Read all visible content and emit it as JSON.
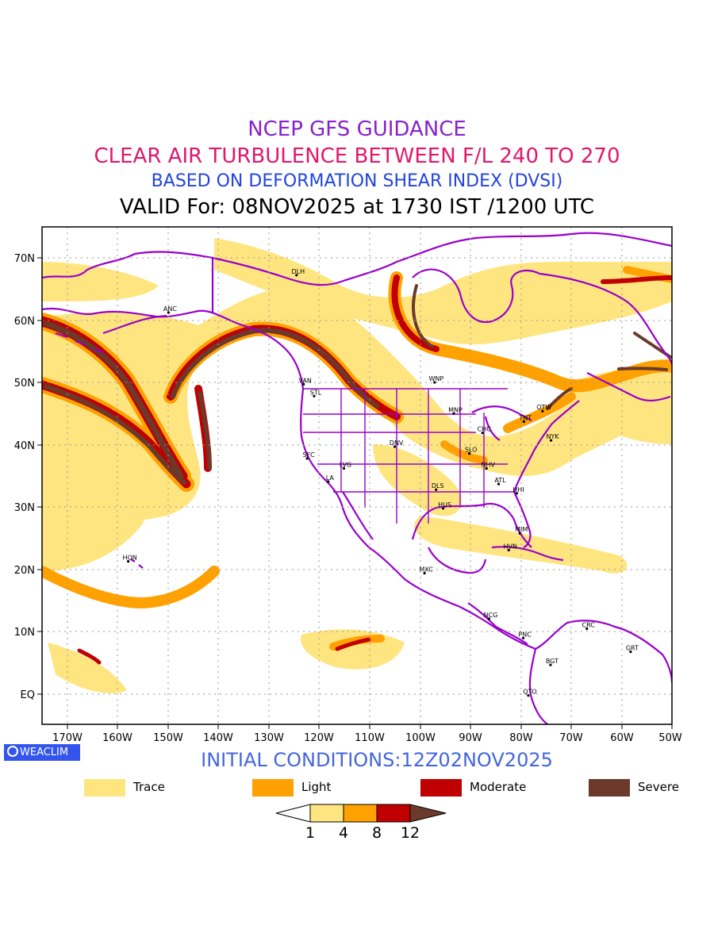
{
  "header": {
    "line1": "NCEP GFS GUIDANCE",
    "line2": "CLEAR AIR TURBULENCE BETWEEN F/L 240 TO 270",
    "line3": "BASED ON DEFORMATION SHEAR INDEX (DVSI)",
    "line4": "VALID For: 08NOV2025 at 1730 IST /1200 UTC"
  },
  "colors": {
    "line1": "#8822cc",
    "line2": "#e0186c",
    "line3": "#2244dd",
    "trace": "#ffe580",
    "light": "#ffa100",
    "moderate": "#c00000",
    "severe": "#6b3a2a",
    "boundary": "#9900cc"
  },
  "axes": {
    "lat_labels": [
      "70N",
      "60N",
      "50N",
      "40N",
      "30N",
      "20N",
      "10N",
      "EQ"
    ],
    "lon_labels": [
      "170W",
      "160W",
      "150W",
      "140W",
      "130W",
      "120W",
      "110W",
      "100W",
      "90W",
      "80W",
      "70W",
      "60W",
      "50W"
    ]
  },
  "stations": [
    {
      "name": "ANC",
      "lon": -149.9,
      "lat": 61.2
    },
    {
      "name": "DLH",
      "lon": -124.5,
      "lat": 67.2
    },
    {
      "name": "VAN",
      "lon": -123.1,
      "lat": 49.7
    },
    {
      "name": "STL",
      "lon": -121.0,
      "lat": 47.8
    },
    {
      "name": "WNP",
      "lon": -97.1,
      "lat": 50.0
    },
    {
      "name": "MNP",
      "lon": -93.3,
      "lat": 45.0
    },
    {
      "name": "OTW",
      "lon": -75.7,
      "lat": 45.4
    },
    {
      "name": "TNT",
      "lon": -79.4,
      "lat": 43.7
    },
    {
      "name": "CHC",
      "lon": -87.6,
      "lat": 41.9
    },
    {
      "name": "NYK",
      "lon": -74.0,
      "lat": 40.7
    },
    {
      "name": "SFC",
      "lon": -122.4,
      "lat": 37.8
    },
    {
      "name": "LVG",
      "lon": -115.1,
      "lat": 36.2
    },
    {
      "name": "DNV",
      "lon": -105.0,
      "lat": 39.7
    },
    {
      "name": "SLO",
      "lon": -90.2,
      "lat": 38.6
    },
    {
      "name": "NHV",
      "lon": -86.8,
      "lat": 36.2
    },
    {
      "name": "LA",
      "lon": -118.2,
      "lat": 34.1
    },
    {
      "name": "DLS",
      "lon": -96.8,
      "lat": 32.8
    },
    {
      "name": "ATL",
      "lon": -84.4,
      "lat": 33.7
    },
    {
      "name": "HHI",
      "lon": -80.8,
      "lat": 32.2
    },
    {
      "name": "HUS",
      "lon": -95.4,
      "lat": 29.8
    },
    {
      "name": "MIM",
      "lon": -80.2,
      "lat": 25.8
    },
    {
      "name": "HVN",
      "lon": -82.4,
      "lat": 23.1
    },
    {
      "name": "HON",
      "lon": -157.9,
      "lat": 21.3
    },
    {
      "name": "MXC",
      "lon": -99.1,
      "lat": 19.4
    },
    {
      "name": "NCG",
      "lon": -86.3,
      "lat": 12.1
    },
    {
      "name": "CRC",
      "lon": -66.9,
      "lat": 10.5
    },
    {
      "name": "PNC",
      "lon": -79.5,
      "lat": 9.0
    },
    {
      "name": "GRT",
      "lon": -58.2,
      "lat": 6.8
    },
    {
      "name": "BGT",
      "lon": -74.1,
      "lat": 4.7
    },
    {
      "name": "QTO",
      "lon": -78.5,
      "lat": -0.2
    }
  ],
  "footer": {
    "logo": "WEACLIM",
    "initial_conditions": "INITIAL CONDITIONS:12Z02NOV2025"
  },
  "legend": [
    {
      "label": "Trace",
      "color": "#ffe580"
    },
    {
      "label": "Light",
      "color": "#ffa100"
    },
    {
      "label": "Moderate",
      "color": "#c00000"
    },
    {
      "label": "Severe",
      "color": "#6b3a2a"
    }
  ],
  "colorbar": {
    "levels": [
      "1",
      "4",
      "8",
      "12"
    ]
  }
}
